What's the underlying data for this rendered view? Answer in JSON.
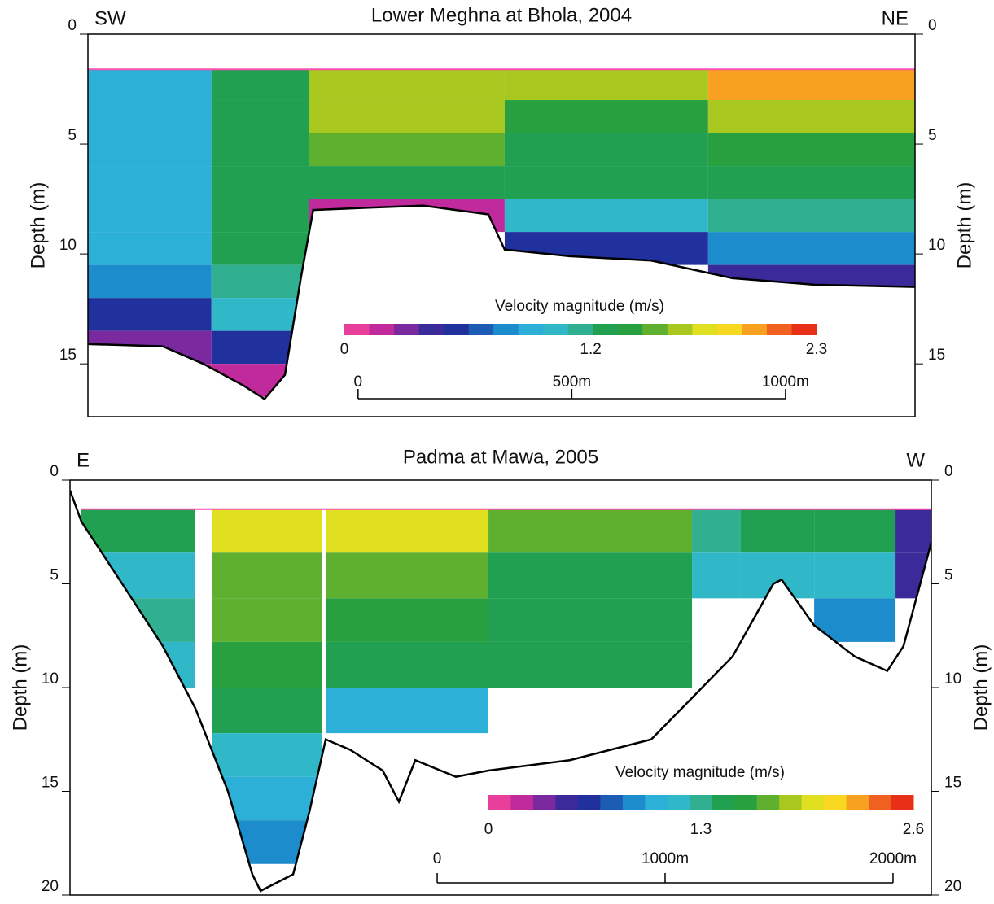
{
  "chart_data": [
    {
      "type": "section",
      "title": "Lower Meghna at Bhola, 2004",
      "left_label": "SW",
      "right_label": "NE",
      "y_label": "Depth (m)",
      "y2_label": "Depth (m)",
      "xlim": [
        -632,
        1303
      ],
      "ylim": [
        0,
        17.4
      ],
      "yticks": [
        0,
        5,
        10,
        15
      ],
      "velocity": {
        "x_edges": [
          -632,
          -343,
          -114,
          343,
          819,
          1303
        ],
        "depth_edges": [
          1.6,
          3,
          4.5,
          6,
          7.5,
          9,
          10.5,
          12,
          13.5,
          15,
          16.5
        ],
        "values": [
          [
            0.9,
            1.3,
            1.7,
            1.6,
            2.0
          ],
          [
            0.9,
            1.3,
            1.6,
            1.4,
            1.7
          ],
          [
            0.9,
            1.3,
            1.5,
            1.3,
            1.4
          ],
          [
            0.9,
            1.3,
            1.3,
            1.3,
            1.3
          ],
          [
            0.9,
            1.3,
            0.1,
            1.0,
            1.1
          ],
          [
            0.9,
            1.3,
            null,
            0.5,
            0.8
          ],
          [
            0.8,
            1.2,
            null,
            null,
            0.4
          ],
          [
            0.5,
            1.0,
            null,
            null,
            null
          ],
          [
            0.2,
            0.5,
            null,
            null,
            null
          ],
          [
            0.1,
            0.1,
            null,
            null,
            null
          ]
        ]
      },
      "bed": {
        "x": [
          -632,
          -457,
          -362,
          -267,
          -219,
          -171,
          -133,
          -105,
          19,
          152,
          305,
          343,
          495,
          686,
          876,
          1067,
          1303
        ],
        "depth": [
          14.1,
          14.2,
          15,
          16,
          16.6,
          15.5,
          11,
          8,
          7.9,
          7.8,
          8.2,
          9.8,
          10.1,
          10.3,
          11.1,
          11.4,
          11.5
        ]
      },
      "colorbar": {
        "title": "Velocity magnitude (m/s)",
        "clim": [
          0,
          2.3
        ],
        "ticks": [
          0,
          1.2,
          2.3
        ]
      },
      "scale_bar": {
        "ticks": [
          {
            "value": 0,
            "label": "0"
          },
          {
            "value": 500,
            "label": "500m"
          },
          {
            "value": 1000,
            "label": "1000m"
          }
        ]
      },
      "colormap": [
        "#e8409a",
        "#c02a9c",
        "#7a2a9e",
        "#3a2a9a",
        "#20309c",
        "#1c5cb4",
        "#1c8ccc",
        "#2cb0d8",
        "#30b8c8",
        "#30b090",
        "#20a050",
        "#28a040",
        "#60b030",
        "#a8c820",
        "#e0e020",
        "#f8d820",
        "#f8a020",
        "#f06020",
        "#e83018"
      ]
    },
    {
      "type": "section",
      "title": "Padma at Mawa, 2005",
      "left_label": "E",
      "right_label": "W",
      "y_label": "Depth (m)",
      "y2_label": "Depth (m)",
      "xlim": [
        -1611,
        2168
      ],
      "ylim": [
        0,
        20
      ],
      "yticks": [
        0,
        5,
        10,
        15,
        20
      ],
      "velocity": {
        "x_edges": [
          -1561,
          -1061,
          -989,
          -507,
          -489,
          225,
          1118,
          1332,
          1654,
          2011,
          2168
        ],
        "depth_edges": [
          1.4,
          3.5,
          5.7,
          7.8,
          10,
          12.2,
          14.3,
          16.4,
          18.5
        ],
        "values": [
          [
            1.4,
            null,
            2.0,
            null,
            2.0,
            1.7,
            1.3,
            1.4,
            1.5,
            0.4
          ],
          [
            1.2,
            null,
            1.8,
            null,
            1.7,
            1.5,
            1.2,
            1.2,
            1.2,
            0.5
          ],
          [
            1.3,
            null,
            1.7,
            null,
            1.6,
            1.5,
            null,
            null,
            0.9,
            null
          ],
          [
            1.2,
            null,
            1.6,
            null,
            1.5,
            1.4,
            null,
            null,
            null,
            null
          ],
          [
            null,
            null,
            1.5,
            null,
            1.0,
            null,
            null,
            null,
            null,
            null
          ],
          [
            null,
            null,
            1.2,
            null,
            null,
            null,
            null,
            null,
            null,
            null
          ],
          [
            null,
            null,
            1.0,
            null,
            null,
            null,
            null,
            null,
            null,
            null
          ],
          [
            null,
            null,
            0.8,
            null,
            null,
            null,
            null,
            null,
            null,
            null
          ]
        ]
      },
      "bed": {
        "x": [
          -1611,
          -1561,
          -1382,
          -1204,
          -1061,
          -918,
          -811,
          -775,
          -632,
          -561,
          -489,
          -382,
          -239,
          -168,
          -96,
          82,
          225,
          582,
          939,
          1118,
          1296,
          1475,
          1511,
          1654,
          1832,
          1975,
          2046,
          2168
        ],
        "depth": [
          0.5,
          2,
          5,
          8,
          11,
          15,
          19,
          19.8,
          19,
          16,
          12.5,
          13,
          14,
          15.5,
          13.5,
          14.3,
          14,
          13.5,
          12.5,
          10.5,
          8.5,
          5,
          4.8,
          7,
          8.5,
          9.2,
          8,
          3
        ]
      },
      "colorbar": {
        "title": "Velocity magnitude (m/s)",
        "clim": [
          0,
          2.6
        ],
        "ticks": [
          0,
          1.3,
          2.6
        ]
      },
      "scale_bar": {
        "ticks": [
          {
            "value": 0,
            "label": "0"
          },
          {
            "value": 1000,
            "label": "1000m"
          },
          {
            "value": 2000,
            "label": "2000m"
          }
        ]
      },
      "colormap": [
        "#e8409a",
        "#c02a9c",
        "#7a2a9e",
        "#3a2a9a",
        "#20309c",
        "#1c5cb4",
        "#1c8ccc",
        "#2cb0d8",
        "#30b8c8",
        "#30b090",
        "#20a050",
        "#28a040",
        "#60b030",
        "#a8c820",
        "#e0e020",
        "#f8d820",
        "#f8a020",
        "#f06020",
        "#e83018"
      ]
    }
  ]
}
